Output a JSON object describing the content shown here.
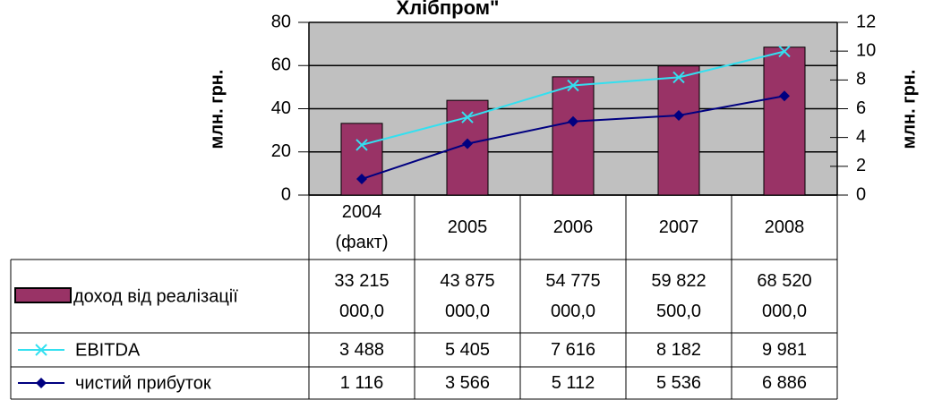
{
  "chart_data": {
    "type": "bar",
    "title": "Хлібпром\"",
    "ylabel": "млн. грн.",
    "y2label": "млн. грн.",
    "categories": [
      "2004 (факт)",
      "2005",
      "2006",
      "2007",
      "2008"
    ],
    "ylim": [
      0,
      80
    ],
    "yticks": [
      0,
      20,
      40,
      60,
      80
    ],
    "y2lim": [
      0,
      12
    ],
    "y2ticks": [
      0,
      2,
      4,
      6,
      8,
      10,
      12
    ],
    "grid": true,
    "plot_background": "#c0c0c0",
    "series": [
      {
        "name": "доход від реалізації",
        "type": "bar",
        "color": "#993366",
        "values": [
          33.215,
          43.875,
          54.775,
          59.8225,
          68.52
        ],
        "value_labels": [
          "33 215 000,0",
          "43 875 000,0",
          "54 775 000,0",
          "59 822 500,0",
          "68 520 000,0"
        ]
      },
      {
        "name": "EBITDA",
        "type": "line",
        "axis": "y2",
        "marker": "x",
        "color": "#33e0f0",
        "values": [
          3.488,
          5.405,
          7.616,
          8.182,
          9.981
        ],
        "value_labels": [
          "3 488",
          "5 405",
          "7 616",
          "8 182",
          "9 981"
        ]
      },
      {
        "name": "чистий прибуток",
        "type": "line",
        "axis": "y2",
        "marker": "diamond",
        "color": "#000080",
        "values": [
          1.116,
          3.566,
          5.112,
          5.536,
          6.886
        ],
        "value_labels": [
          "1 116",
          "3 566",
          "5 112",
          "5 536",
          "6 886"
        ]
      }
    ]
  }
}
